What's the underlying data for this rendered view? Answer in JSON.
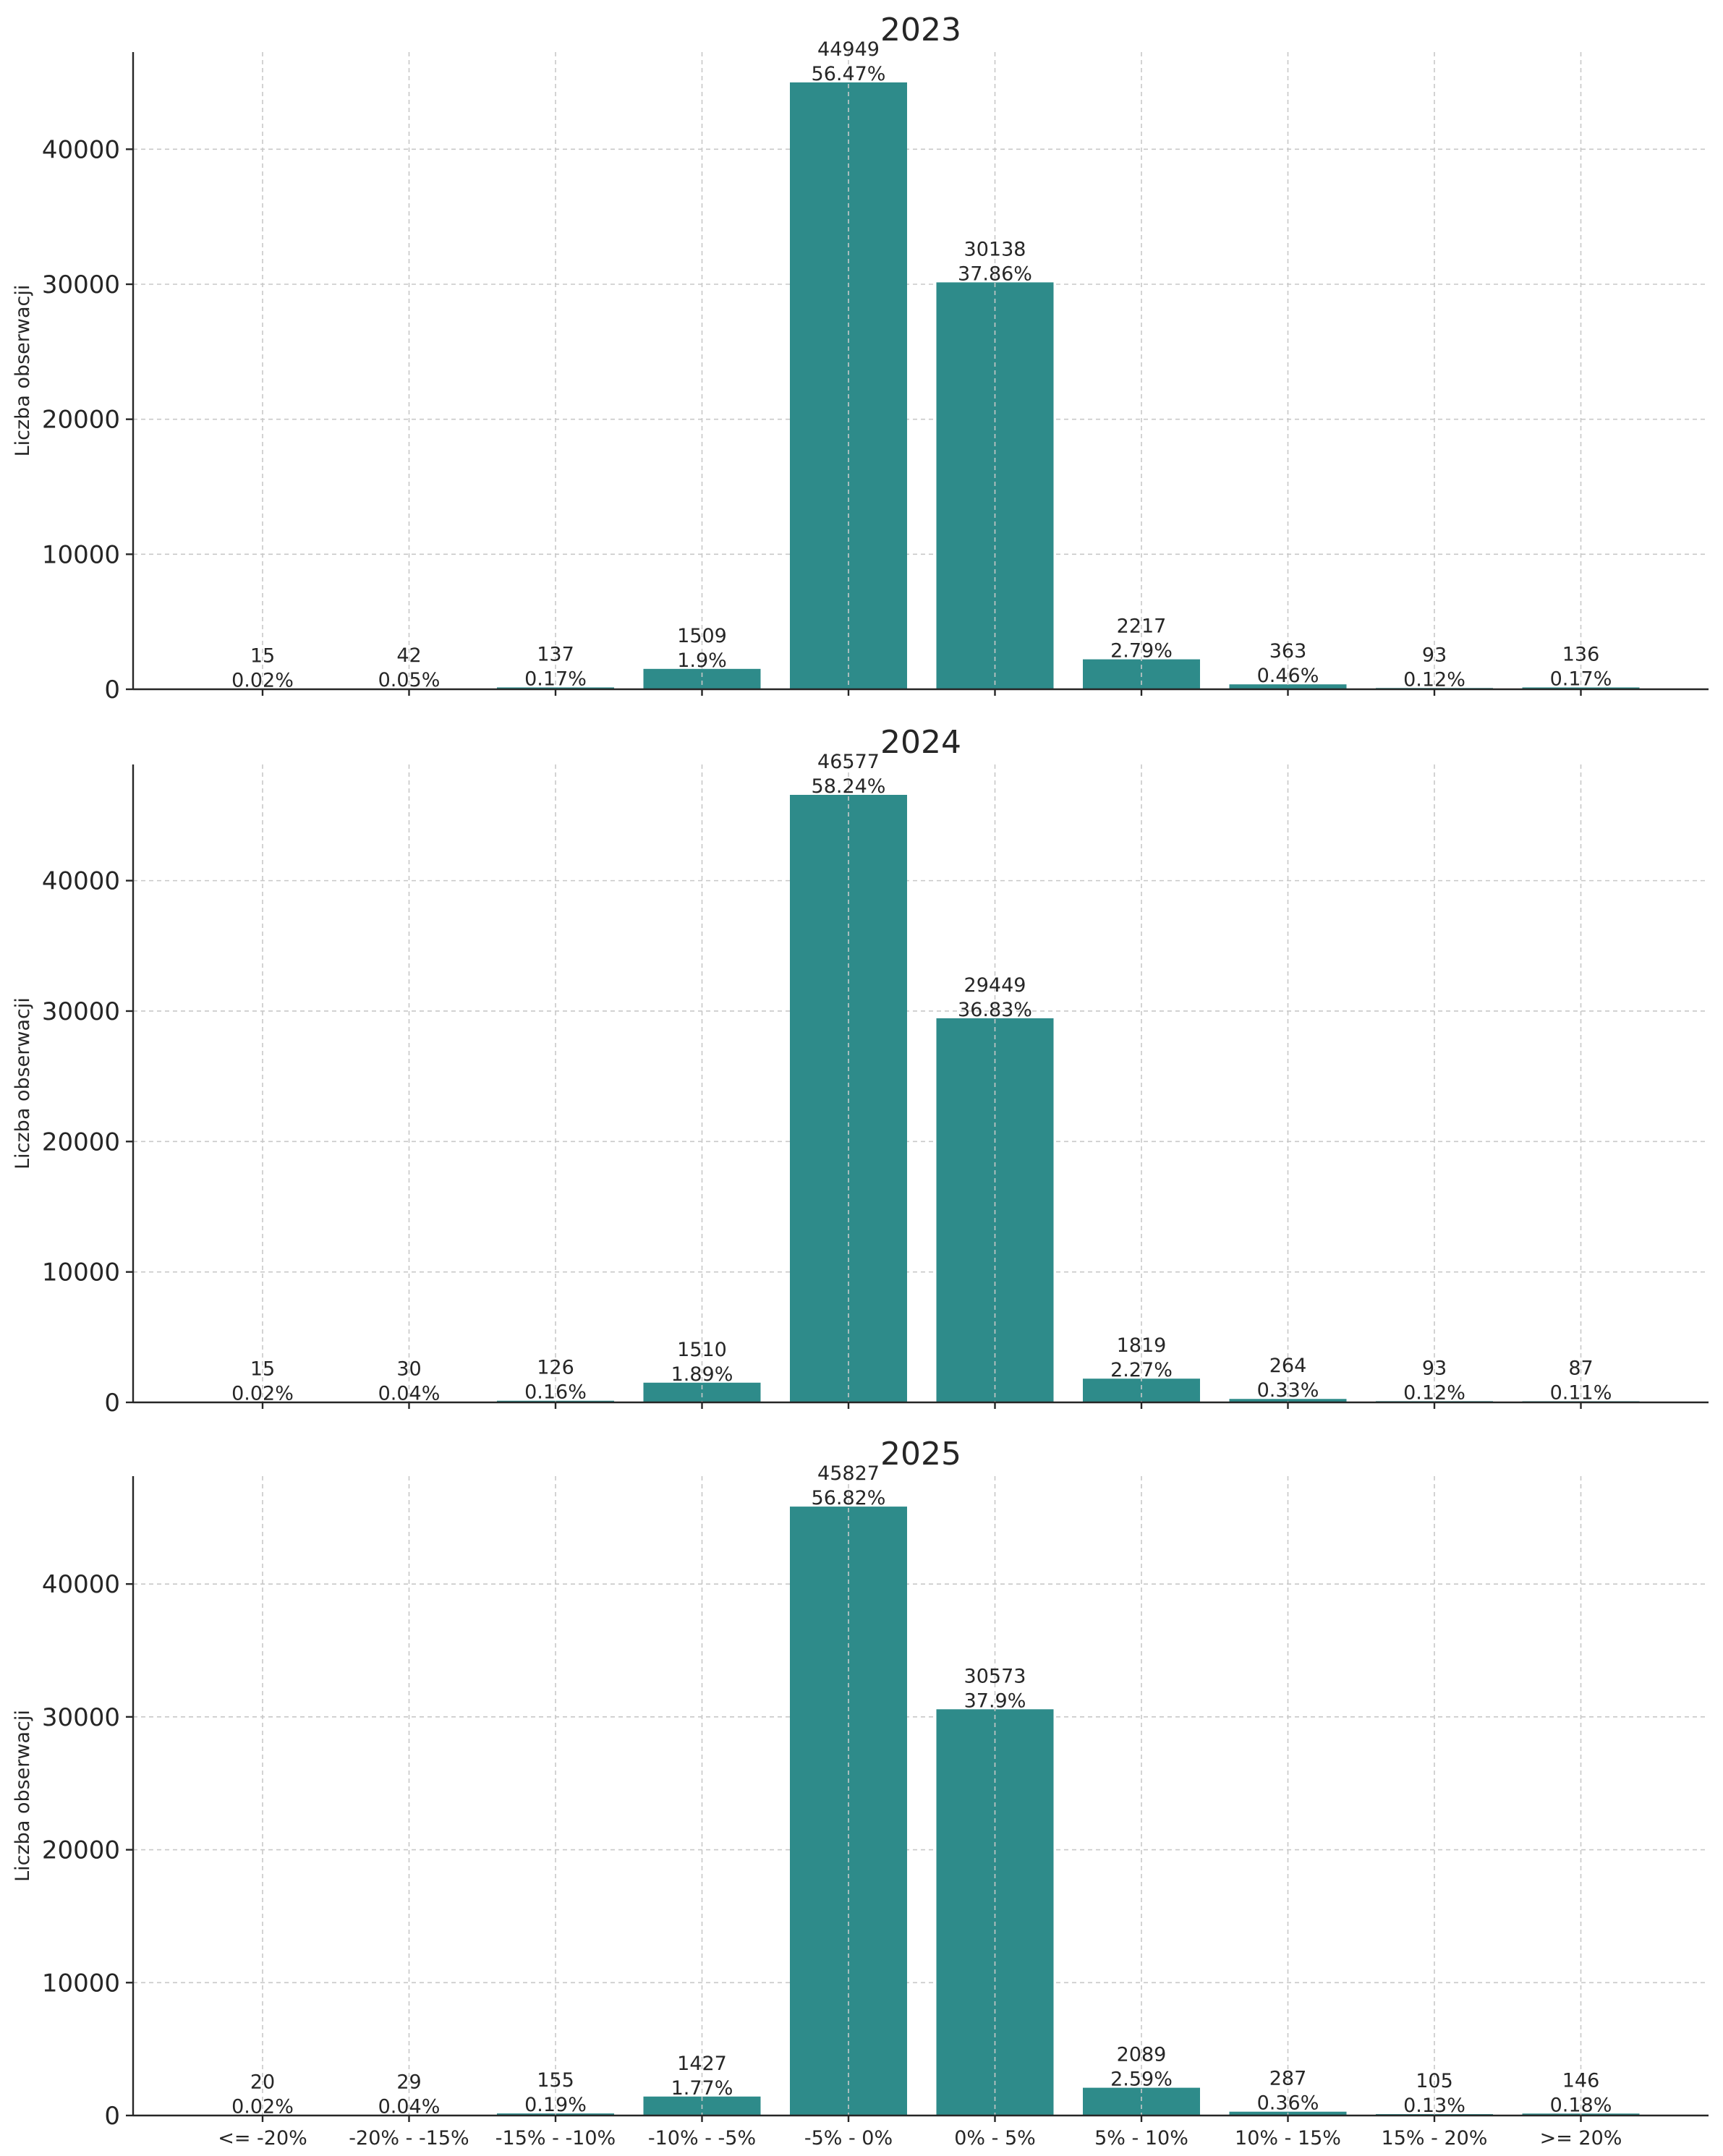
{
  "chart_data": [
    {
      "type": "bar",
      "title": "2023",
      "ylabel": "Liczba obserwacji",
      "ylim": [
        0,
        47196
      ],
      "yticks": [
        0,
        10000,
        20000,
        30000,
        40000
      ],
      "grid": true,
      "categories": [
        "<= -20%",
        "-20% - -15%",
        "-15% - -10%",
        "-10% - -5%",
        "-5% - 0%",
        "0% - 5%",
        "5% - 10%",
        "10% - 15%",
        "15% - 20%",
        ">= 20%"
      ],
      "values": [
        15,
        42,
        137,
        1509,
        44949,
        30138,
        2217,
        363,
        93,
        136
      ],
      "percent_labels": [
        "0.02%",
        "0.05%",
        "0.17%",
        "1.9%",
        "56.47%",
        "37.86%",
        "2.79%",
        "0.46%",
        "0.12%",
        "0.17%"
      ],
      "bar_color": "#2e8b8a"
    },
    {
      "type": "bar",
      "title": "2024",
      "ylabel": "Liczba obserwacji",
      "ylim": [
        0,
        48906
      ],
      "yticks": [
        0,
        10000,
        20000,
        30000,
        40000
      ],
      "grid": true,
      "categories": [
        "<= -20%",
        "-20% - -15%",
        "-15% - -10%",
        "-10% - -5%",
        "-5% - 0%",
        "0% - 5%",
        "5% - 10%",
        "10% - 15%",
        "15% - 20%",
        ">= 20%"
      ],
      "values": [
        15,
        30,
        126,
        1510,
        46577,
        29449,
        1819,
        264,
        93,
        87
      ],
      "percent_labels": [
        "0.02%",
        "0.04%",
        "0.16%",
        "1.89%",
        "58.24%",
        "36.83%",
        "2.27%",
        "0.33%",
        "0.12%",
        "0.11%"
      ],
      "bar_color": "#2e8b8a"
    },
    {
      "type": "bar",
      "title": "2025",
      "ylabel": "Liczba obserwacji",
      "ylim": [
        0,
        48118
      ],
      "yticks": [
        0,
        10000,
        20000,
        30000,
        40000
      ],
      "grid": true,
      "categories": [
        "<= -20%",
        "-20% - -15%",
        "-15% - -10%",
        "-10% - -5%",
        "-5% - 0%",
        "0% - 5%",
        "5% - 10%",
        "10% - 15%",
        "15% - 20%",
        ">= 20%"
      ],
      "values": [
        20,
        29,
        155,
        1427,
        45827,
        30573,
        2089,
        287,
        105,
        146
      ],
      "percent_labels": [
        "0.02%",
        "0.04%",
        "0.19%",
        "1.77%",
        "56.82%",
        "37.9%",
        "2.59%",
        "0.36%",
        "0.13%",
        "0.18%"
      ],
      "bar_color": "#2e8b8a"
    }
  ]
}
